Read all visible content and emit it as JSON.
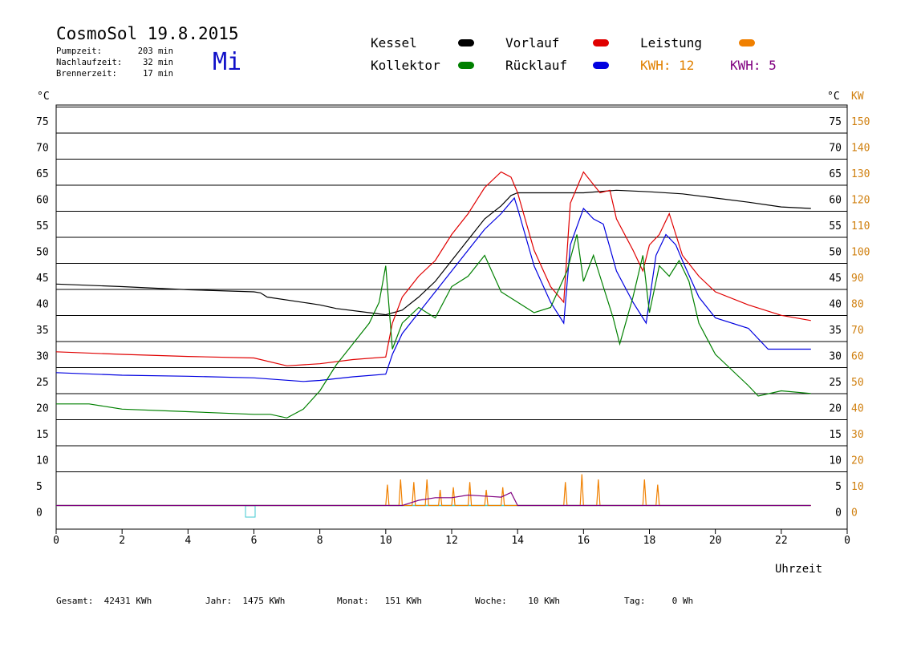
{
  "header": {
    "title": "CosmoSol 19.8.2015",
    "weekday": "Mi",
    "stats": [
      {
        "label": "Pumpzeit:",
        "value": "203 min"
      },
      {
        "label": "Nachlaufzeit:",
        "value": "32 min"
      },
      {
        "label": "Brennerzeit:",
        "value": "17 min"
      }
    ]
  },
  "legend": {
    "kessel": {
      "label": "Kessel",
      "color": "#000000"
    },
    "vorlauf": {
      "label": "Vorlauf",
      "color": "#e00000"
    },
    "leistung": {
      "label": "Leistung",
      "color": "#f08000"
    },
    "kollektor": {
      "label": "Kollektor",
      "color": "#008000"
    },
    "ruecklauf": {
      "label": "Rücklauf",
      "color": "#0000e0"
    },
    "kwh1": {
      "label": "KWH:",
      "value": "12",
      "color": "#e08000"
    },
    "kwh2": {
      "label": "KWH:",
      "value": "5",
      "color": "#800080"
    }
  },
  "chart_data": {
    "type": "line",
    "title": "CosmoSol 19.8.2015",
    "xlabel": "Uhrzeit",
    "ylabel_left": "°C",
    "ylabel_right_1": "°C",
    "ylabel_right_2": "KW",
    "xlim": [
      0,
      24
    ],
    "ylim": [
      -3,
      78
    ],
    "grid": true,
    "x_ticks": [
      "0",
      "2",
      "4",
      "6",
      "8",
      "10",
      "12",
      "14",
      "16",
      "18",
      "20",
      "22",
      "0"
    ],
    "y_ticks": [
      0,
      5,
      10,
      15,
      20,
      25,
      30,
      35,
      40,
      45,
      50,
      55,
      60,
      65,
      70,
      75
    ],
    "y_ticks_kw": [
      0,
      10,
      20,
      30,
      40,
      50,
      60,
      70,
      80,
      90,
      100,
      110,
      120,
      130,
      140,
      150
    ],
    "series": [
      {
        "name": "Kessel",
        "color": "#000000",
        "x": [
          0,
          2,
          4,
          6,
          6.2,
          6.4,
          8,
          8.5,
          9.5,
          10,
          10.5,
          11,
          11.5,
          12,
          12.5,
          13,
          13.5,
          13.8,
          14,
          15,
          16,
          17,
          18,
          19,
          20,
          21,
          22,
          22.9
        ],
        "y": [
          42.5,
          42,
          41.4,
          41,
          40.8,
          40,
          38.5,
          37.8,
          37,
          36.6,
          37.5,
          40,
          43,
          47,
          51,
          55,
          57.5,
          59.5,
          60,
          60,
          60,
          60.5,
          60.2,
          59.8,
          59,
          58.2,
          57.3,
          57
        ]
      },
      {
        "name": "Vorlauf",
        "color": "#e00000",
        "x": [
          0,
          2,
          4,
          6,
          7,
          8,
          9,
          10,
          10.2,
          10.5,
          11,
          11.5,
          12,
          12.5,
          13,
          13.5,
          13.8,
          14,
          14.5,
          15,
          15.4,
          15.6,
          16,
          16.5,
          16.8,
          17,
          17.5,
          17.8,
          18,
          18.3,
          18.6,
          19,
          19.5,
          20,
          21,
          22,
          22.9
        ],
        "y": [
          29.5,
          29,
          28.6,
          28.3,
          26.8,
          27.2,
          28,
          28.5,
          35,
          40,
          44,
          47,
          52,
          56,
          61,
          64,
          63,
          60,
          49,
          42,
          39,
          58,
          64,
          60,
          60.5,
          55,
          49,
          45,
          50,
          52,
          56,
          48,
          44,
          41,
          38.5,
          36.5,
          35.5
        ]
      },
      {
        "name": "Rücklauf",
        "color": "#0000e0",
        "x": [
          0,
          2,
          4,
          6,
          7.5,
          8,
          9,
          10,
          10.2,
          10.5,
          11,
          11.5,
          12,
          12.5,
          13,
          13.5,
          13.9,
          14,
          14.5,
          15,
          15.4,
          15.6,
          16,
          16.3,
          16.6,
          17,
          17.5,
          17.9,
          18.2,
          18.5,
          18.8,
          19,
          19.5,
          20,
          21,
          21.6,
          22,
          22.9
        ],
        "y": [
          25.5,
          25,
          24.8,
          24.5,
          23.8,
          24,
          24.7,
          25.2,
          29,
          33,
          37,
          41,
          45,
          49,
          53,
          56,
          59,
          57,
          46,
          39,
          35,
          50,
          57,
          55,
          54,
          45,
          39,
          35,
          48,
          52,
          50,
          47,
          40,
          36,
          34,
          30,
          30,
          30
        ]
      },
      {
        "name": "Kollektor",
        "color": "#008000",
        "x": [
          0,
          1,
          2,
          4,
          6,
          6.5,
          7,
          7.5,
          8,
          8.5,
          9,
          9.5,
          9.8,
          10,
          10.2,
          10.5,
          11,
          11.5,
          12,
          12.5,
          13,
          13.5,
          14,
          14.5,
          15,
          15.5,
          15.8,
          16,
          16.3,
          16.6,
          16.9,
          17.1,
          17.5,
          17.8,
          18,
          18.3,
          18.6,
          18.9,
          19.2,
          19.5,
          20,
          20.5,
          21,
          21.3,
          22,
          22.9
        ],
        "y": [
          19.5,
          19.5,
          18.5,
          18,
          17.5,
          17.5,
          16.8,
          18.5,
          22,
          27,
          31,
          35,
          39,
          46,
          30,
          35,
          38,
          36,
          42,
          44,
          48,
          41,
          39,
          37,
          38,
          45,
          52,
          43,
          48,
          42,
          36,
          31,
          40,
          48,
          37,
          46,
          44,
          47,
          43,
          35,
          29,
          26,
          23,
          21,
          22,
          21.5
        ]
      },
      {
        "name": "Leistung",
        "color": "#f08000",
        "x": [
          0,
          10,
          10.05,
          10.1,
          10.4,
          10.45,
          10.5,
          10.8,
          10.85,
          10.9,
          11.2,
          11.25,
          11.3,
          11.6,
          11.65,
          11.7,
          12,
          12.05,
          12.1,
          12.5,
          12.55,
          12.6,
          13,
          13.05,
          13.1,
          13.5,
          13.55,
          13.6,
          14,
          15.4,
          15.45,
          15.5,
          15.9,
          15.95,
          16,
          16.4,
          16.45,
          16.5,
          16.8,
          17.8,
          17.85,
          17.9,
          18.2,
          18.25,
          18.3,
          18.4,
          22.9
        ],
        "y": [
          0,
          0,
          4,
          0,
          0,
          5,
          0,
          0,
          4.5,
          0,
          0,
          5,
          0,
          0,
          3,
          0,
          0,
          3.5,
          0,
          0,
          4.5,
          0,
          0,
          3,
          0,
          0,
          3.5,
          0,
          0,
          0,
          4.5,
          0,
          0,
          6,
          0,
          0,
          5,
          0,
          0,
          0,
          5,
          0,
          0,
          4,
          0,
          0,
          0
        ]
      },
      {
        "name": "KWH: 5",
        "color": "#800080",
        "x": [
          0,
          10.5,
          11,
          11.5,
          12,
          12.5,
          13,
          13.5,
          13.8,
          14,
          22.9
        ],
        "y": [
          0,
          0,
          1,
          1.5,
          1.5,
          2,
          1.8,
          1.6,
          2.5,
          0,
          0
        ]
      }
    ]
  },
  "footer": {
    "gesamt_label": "Gesamt:",
    "gesamt_value": "42431 KWh",
    "jahr_label": "Jahr:",
    "jahr_value": "1475 KWh",
    "monat_label": "Monat:",
    "monat_value": "151 KWh",
    "woche_label": "Woche:",
    "woche_value": "10 KWh",
    "tag_label": "Tag:",
    "tag_value": "0 Wh"
  }
}
